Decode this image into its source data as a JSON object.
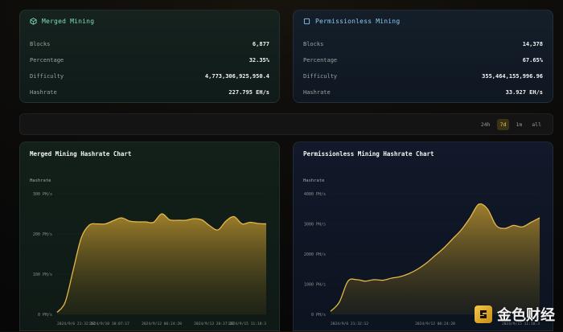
{
  "merged": {
    "title": "Merged Mining",
    "icon": "cube-icon",
    "rows": [
      {
        "label": "Blocks",
        "value": "6,877"
      },
      {
        "label": "Percentage",
        "value": "32.35%"
      },
      {
        "label": "Difficulty",
        "value": "4,773,306,925,950.4"
      },
      {
        "label": "Hashrate",
        "value": "227.795 EH/s"
      }
    ]
  },
  "permissionless": {
    "title": "Permissionless Mining",
    "icon": "square-icon",
    "rows": [
      {
        "label": "Blocks",
        "value": "14,378"
      },
      {
        "label": "Percentage",
        "value": "67.65%"
      },
      {
        "label": "Difficulty",
        "value": "355,464,155,996.96"
      },
      {
        "label": "Hashrate",
        "value": "33.927 EH/s"
      }
    ]
  },
  "toolbar": {
    "ranges": [
      "24h",
      "7d",
      "1m",
      "all"
    ],
    "active": "7d"
  },
  "colors": {
    "accent": "#e6b84a",
    "merged_accent": "#7fe0b9",
    "perm_accent": "#8dc7f5"
  },
  "watermark": {
    "text": "金色财经"
  },
  "chart_data": [
    {
      "type": "area",
      "title": "Merged Mining Hashrate Chart",
      "ylabel": "Hashrate",
      "yticks": [
        "0 PH/s",
        "100 PH/s",
        "200 PH/s",
        "300 PH/s"
      ],
      "ylim": [
        0,
        300
      ],
      "xticks": [
        "2024/9/6 21:32:12",
        "2024/9/10 10:07:17",
        "2024/9/12 06:24:20",
        "2024/9/13 20:37:27",
        "2024/9/15 11:18:3"
      ],
      "values": [
        5,
        30,
        110,
        190,
        222,
        225,
        225,
        233,
        240,
        232,
        230,
        230,
        229,
        250,
        235,
        234,
        234,
        238,
        235,
        220,
        210,
        232,
        243,
        225,
        229,
        226,
        225
      ]
    },
    {
      "type": "area",
      "title": "Permissionless Mining Hashrate Chart",
      "ylabel": "Hashrate",
      "yticks": [
        "0 PH/s",
        "1000 PH/s",
        "2000 PH/s",
        "3000 PH/s",
        "4000 PH/s"
      ],
      "ylim": [
        0,
        4000
      ],
      "xticks": [
        "2024/9/6 21:32:12",
        "2024/9/12 06:24:20",
        "2024/9/15 11:18:3"
      ],
      "values": [
        100,
        400,
        1100,
        1150,
        1100,
        1150,
        1130,
        1200,
        1250,
        1350,
        1500,
        1700,
        1950,
        2200,
        2500,
        2800,
        3200,
        3650,
        3500,
        2950,
        2850,
        2950,
        2900,
        3050,
        3200
      ]
    }
  ]
}
